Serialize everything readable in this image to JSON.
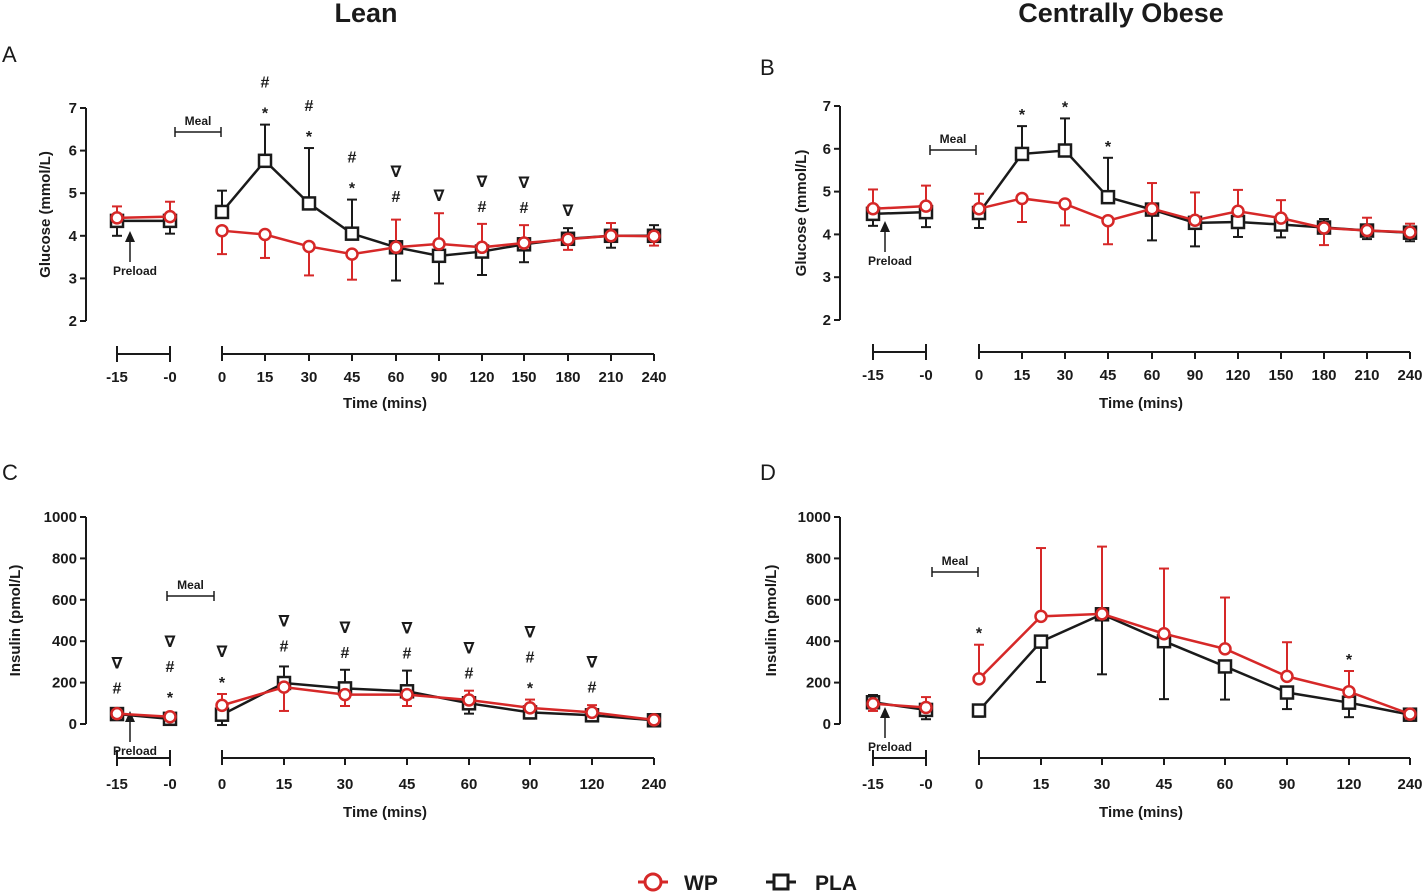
{
  "column_titles": [
    "Lean",
    "Centrally Obese"
  ],
  "colors": {
    "wp": "#d62828",
    "pla": "#1a1a1a"
  },
  "legend": [
    {
      "name": "WP",
      "marker": "circle",
      "color": "#d62828"
    },
    {
      "name": "PLA",
      "marker": "square",
      "color": "#1a1a1a"
    }
  ],
  "chart_data": [
    {
      "panel": "A",
      "type": "line",
      "group": "Lean",
      "ylabel": "Glucose (mmol/L)",
      "xlabel": "Time (mins)",
      "ylim": [
        2,
        7
      ],
      "yticks": [
        2,
        3,
        4,
        5,
        6,
        7
      ],
      "ytick_labels": [
        "2",
        "3",
        "4",
        "5",
        "6",
        "7"
      ],
      "pre_ticks": [
        "-15",
        "-0"
      ],
      "post_ticks": [
        "0",
        "15",
        "30",
        "45",
        "60",
        "90",
        "120",
        "150",
        "180",
        "210",
        "240"
      ],
      "meal_label": "Meal",
      "preload_label": "Preload",
      "series": [
        {
          "name": "WP",
          "pre": [
            4.42,
            4.45
          ],
          "pre_err": [
            0.27,
            0.35
          ],
          "post": [
            4.12,
            4.03,
            3.75,
            3.57,
            3.73,
            3.81,
            3.73,
            3.83,
            3.92,
            4.0,
            3.99
          ],
          "post_err": [
            0.55,
            0.55,
            0.68,
            0.6,
            0.65,
            0.72,
            0.55,
            0.42,
            0.25,
            0.3,
            0.22
          ]
        },
        {
          "name": "PLA",
          "pre": [
            4.35,
            4.35
          ],
          "pre_err": [
            0.35,
            0.3
          ],
          "post": [
            4.56,
            5.76,
            4.76,
            4.05,
            3.73,
            3.53,
            3.63,
            3.8,
            3.93,
            4.0,
            4.0
          ],
          "post_err": [
            0.5,
            0.85,
            1.3,
            0.8,
            0.78,
            0.65,
            0.55,
            0.42,
            0.25,
            0.28,
            0.25
          ]
        }
      ],
      "annotations": [
        {
          "pos": 1,
          "marks": [
            "*",
            "#"
          ]
        },
        {
          "pos": 2,
          "marks": [
            "*",
            "#"
          ]
        },
        {
          "pos": 3,
          "marks": [
            "*",
            "#"
          ]
        },
        {
          "pos": 4,
          "marks": [
            "#",
            "∇"
          ]
        },
        {
          "pos": 5,
          "marks": [
            "∇"
          ]
        },
        {
          "pos": 6,
          "marks": [
            "#",
            "∇"
          ]
        },
        {
          "pos": 7,
          "marks": [
            "#",
            "∇"
          ]
        },
        {
          "pos": 8,
          "marks": [
            "∇"
          ]
        }
      ]
    },
    {
      "panel": "B",
      "type": "line",
      "group": "Centrally Obese",
      "ylabel": "Glucose (mmol/L)",
      "xlabel": "Time (mins)",
      "ylim": [
        2,
        7
      ],
      "yticks": [
        2,
        3,
        4,
        5,
        6,
        7
      ],
      "ytick_labels": [
        "2",
        "3",
        "4",
        "5",
        "6",
        "7"
      ],
      "pre_ticks": [
        "-15",
        "-0"
      ],
      "post_ticks": [
        "0",
        "15",
        "30",
        "45",
        "60",
        "90",
        "120",
        "150",
        "180",
        "210",
        "240"
      ],
      "meal_label": "Meal",
      "preload_label": "Preload",
      "series": [
        {
          "name": "WP",
          "pre": [
            4.6,
            4.66
          ],
          "pre_err": [
            0.45,
            0.48
          ],
          "post": [
            4.6,
            4.84,
            4.71,
            4.32,
            4.6,
            4.33,
            4.54,
            4.38,
            4.15,
            4.09,
            4.05
          ],
          "post_err": [
            0.35,
            0.55,
            0.5,
            0.55,
            0.6,
            0.65,
            0.5,
            0.42,
            0.4,
            0.3,
            0.2
          ]
        },
        {
          "name": "PLA",
          "pre": [
            4.48,
            4.52
          ],
          "pre_err": [
            0.28,
            0.35
          ],
          "post": [
            4.5,
            5.88,
            5.96,
            4.87,
            4.58,
            4.27,
            4.29,
            4.23,
            4.16,
            4.09,
            4.04
          ],
          "post_err": [
            0.35,
            0.65,
            0.75,
            0.92,
            0.72,
            0.55,
            0.35,
            0.3,
            0.2,
            0.2,
            0.2
          ]
        }
      ],
      "annotations": [
        {
          "pos": 1,
          "marks": [
            "*"
          ]
        },
        {
          "pos": 2,
          "marks": [
            "*"
          ]
        },
        {
          "pos": 3,
          "marks": [
            "*"
          ]
        }
      ]
    },
    {
      "panel": "C",
      "type": "line",
      "group": "Lean",
      "ylabel": "Insulin (pmol/L)",
      "xlabel": "Time (mins)",
      "ylim": [
        0,
        1000
      ],
      "yticks": [
        0,
        200,
        400,
        600,
        800,
        1000
      ],
      "ytick_labels": [
        "0",
        "200",
        "400",
        "600",
        "800",
        "1000"
      ],
      "pre_ticks": [
        "-15",
        "-0"
      ],
      "post_ticks": [
        "0",
        "15",
        "30",
        "45",
        "60",
        "90",
        "120",
        "240"
      ],
      "meal_label": "Meal",
      "preload_label": "Preload",
      "series": [
        {
          "name": "WP",
          "pre": [
            50,
            35
          ],
          "pre_err": [
            15,
            12
          ],
          "post": [
            90,
            178,
            142,
            142,
            116,
            78,
            56,
            20
          ],
          "post_err": [
            55,
            115,
            55,
            55,
            45,
            40,
            35,
            8
          ]
        },
        {
          "name": "PLA",
          "pre": [
            48,
            25
          ],
          "pre_err": [
            15,
            10
          ],
          "post": [
            45,
            198,
            172,
            158,
            100,
            56,
            42,
            18
          ],
          "post_err": [
            50,
            80,
            90,
            100,
            50,
            30,
            25,
            8
          ]
        }
      ],
      "annotations": [
        {
          "pos": -2,
          "marks": [
            "#",
            "∇"
          ]
        },
        {
          "pos": -1,
          "marks": [
            "*",
            "#",
            "∇"
          ]
        },
        {
          "pos": 0,
          "marks": [
            "*",
            "∇"
          ]
        },
        {
          "pos": 1,
          "marks": [
            "#",
            "∇"
          ]
        },
        {
          "pos": 2,
          "marks": [
            "#",
            "∇"
          ]
        },
        {
          "pos": 3,
          "marks": [
            "#",
            "∇"
          ]
        },
        {
          "pos": 4,
          "marks": [
            "#",
            "∇"
          ]
        },
        {
          "pos": 5,
          "marks": [
            "*",
            "#",
            "∇"
          ]
        },
        {
          "pos": 6,
          "marks": [
            "#",
            "∇"
          ]
        }
      ]
    },
    {
      "panel": "D",
      "type": "line",
      "group": "Centrally Obese",
      "ylabel": "Insulin (pmol/L)",
      "xlabel": "Time (mins)",
      "ylim": [
        0,
        1000
      ],
      "yticks": [
        0,
        200,
        400,
        600,
        800,
        1000
      ],
      "ytick_labels": [
        "0",
        "200",
        "400",
        "600",
        "800",
        "1000"
      ],
      "pre_ticks": [
        "-15",
        "-0"
      ],
      "post_ticks": [
        "0",
        "15",
        "30",
        "45",
        "60",
        "90",
        "120",
        "240"
      ],
      "meal_label": "Meal",
      "preload_label": "Preload",
      "series": [
        {
          "name": "WP",
          "pre": [
            98,
            80
          ],
          "pre_err": [
            35,
            50
          ],
          "post": [
            218,
            520,
            532,
            436,
            363,
            230,
            156,
            48
          ],
          "post_err": [
            165,
            330,
            325,
            315,
            248,
            165,
            100,
            15
          ]
        },
        {
          "name": "PLA",
          "pre": [
            105,
            68
          ],
          "pre_err": [
            35,
            45
          ],
          "post": [
            65,
            398,
            530,
            400,
            278,
            152,
            103,
            45
          ],
          "post_err": [
            30,
            195,
            290,
            280,
            160,
            80,
            70,
            15
          ]
        }
      ],
      "annotations": [
        {
          "pos": 0,
          "marks": [
            "*"
          ]
        },
        {
          "pos": 6,
          "marks": [
            "*"
          ]
        }
      ]
    }
  ]
}
